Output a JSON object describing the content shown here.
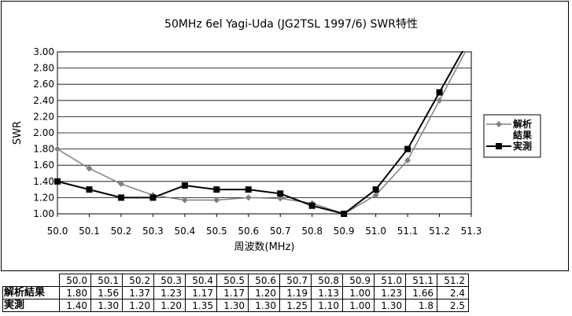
{
  "chart_data": {
    "type": "line",
    "title": "50MHz 6el Yagi-Uda (JG2TSL 1997/6) SWR特性",
    "xlabel": "周波数(MHz)",
    "ylabel": "SWR",
    "x_ticks": [
      "50.0",
      "50.1",
      "50.2",
      "50.3",
      "50.4",
      "50.5",
      "50.6",
      "50.7",
      "50.8",
      "50.9",
      "51.0",
      "51.1",
      "51.2",
      "51.3"
    ],
    "xlim": [
      50.0,
      51.3
    ],
    "ylim": [
      1.0,
      3.0
    ],
    "y_ticks": [
      "1.00",
      "1.20",
      "1.40",
      "1.60",
      "1.80",
      "2.00",
      "2.20",
      "2.40",
      "2.60",
      "2.80",
      "3.00"
    ],
    "grid": true,
    "legend_position": "right",
    "series": [
      {
        "name": "解析結果",
        "color": "#808080",
        "marker": "diamond",
        "x": [
          50.0,
          50.1,
          50.2,
          50.3,
          50.4,
          50.5,
          50.6,
          50.7,
          50.8,
          50.9,
          51.0,
          51.1,
          51.2
        ],
        "values": [
          1.8,
          1.56,
          1.37,
          1.23,
          1.17,
          1.17,
          1.2,
          1.19,
          1.13,
          1.0,
          1.23,
          1.66,
          2.4
        ]
      },
      {
        "name": "実測",
        "color": "#000000",
        "marker": "square",
        "x": [
          50.0,
          50.1,
          50.2,
          50.3,
          50.4,
          50.5,
          50.6,
          50.7,
          50.8,
          50.9,
          51.0,
          51.1,
          51.2
        ],
        "values": [
          1.4,
          1.3,
          1.2,
          1.2,
          1.35,
          1.3,
          1.3,
          1.25,
          1.1,
          1.0,
          1.3,
          1.8,
          2.5
        ]
      }
    ]
  },
  "legend": {
    "calc_line1": "解析",
    "calc_line2": "結果",
    "meas": "実測"
  },
  "table": {
    "headers": [
      "50.0",
      "50.1",
      "50.2",
      "50.3",
      "50.4",
      "50.5",
      "50.6",
      "50.7",
      "50.8",
      "50.9",
      "51.0",
      "51.1",
      "51.2"
    ],
    "rows": [
      {
        "label": "解析結果",
        "cells": [
          "1.80",
          "1.56",
          "1.37",
          "1.23",
          "1.17",
          "1.17",
          "1.20",
          "1.19",
          "1.13",
          "1.00",
          "1.23",
          "1.66",
          "2.4"
        ]
      },
      {
        "label": "実測",
        "cells": [
          "1.40",
          "1.30",
          "1.20",
          "1.20",
          "1.35",
          "1.30",
          "1.30",
          "1.25",
          "1.10",
          "1.00",
          "1.30",
          "1.8",
          "2.5"
        ]
      }
    ]
  }
}
